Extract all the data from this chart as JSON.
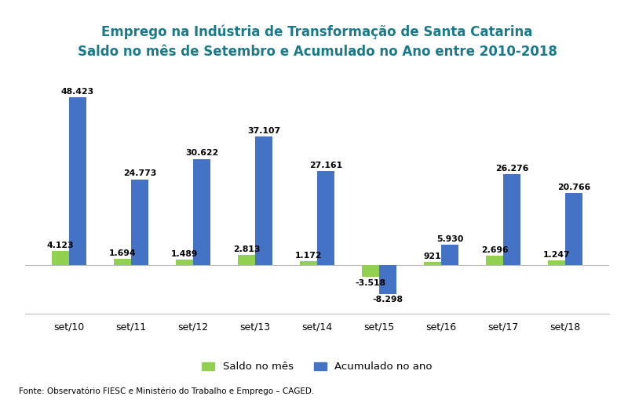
{
  "title_line1": "Emprego na Indústria de Transformação de Santa Catarina",
  "title_line2": "Saldo no mês de Setembro e Acumulado no Ano entre 2010-2018",
  "categories": [
    "set/10",
    "set/11",
    "set/12",
    "set/13",
    "set/14",
    "set/15",
    "set/16",
    "set/17",
    "set/18"
  ],
  "saldo_mes": [
    4123,
    1694,
    1489,
    2813,
    1172,
    -3518,
    921,
    2696,
    1247
  ],
  "acumulado_ano": [
    48423,
    24773,
    30622,
    37107,
    27161,
    -8298,
    5930,
    26276,
    20766
  ],
  "saldo_color": "#92d050",
  "acumulado_color": "#4472c4",
  "title_color": "#1a7a8a",
  "background_color": "#ffffff",
  "fonte": "Fonte: Observatório FIESC e Ministério do Trabalho e Emprego – CAGED.",
  "legend_saldo": "Saldo no mês",
  "legend_acumulado": "Acumulado no ano",
  "bar_width": 0.28,
  "ylim": [
    -14000,
    56000
  ]
}
